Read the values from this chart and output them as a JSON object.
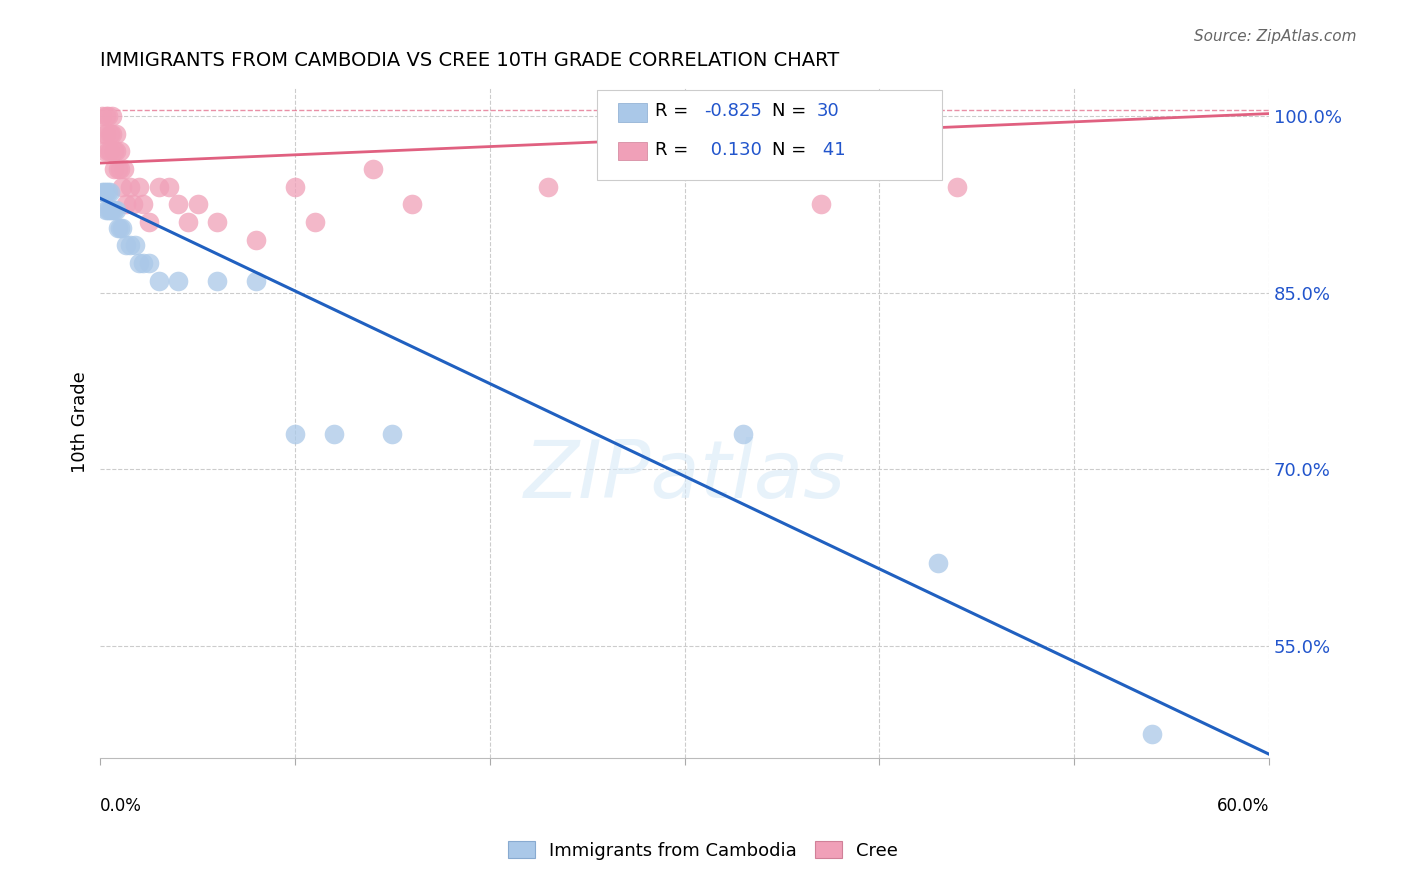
{
  "title": "IMMIGRANTS FROM CAMBODIA VS CREE 10TH GRADE CORRELATION CHART",
  "source": "Source: ZipAtlas.com",
  "ylabel": "10th Grade",
  "xlim": [
    0.0,
    0.6
  ],
  "ylim": [
    0.455,
    1.025
  ],
  "yticks": [
    1.0,
    0.85,
    0.7,
    0.55
  ],
  "ytick_labels": [
    "100.0%",
    "85.0%",
    "70.0%",
    "55.0%"
  ],
  "r_cambodia": -0.825,
  "n_cambodia": 30,
  "r_cree": 0.13,
  "n_cree": 41,
  "color_cambodia": "#aac8e8",
  "color_cree": "#f0a0b8",
  "line_color_cambodia": "#2060c0",
  "line_color_cree": "#e06080",
  "background_color": "#ffffff",
  "grid_color": "#cccccc",
  "cambodia_x": [
    0.001,
    0.002,
    0.003,
    0.003,
    0.004,
    0.004,
    0.005,
    0.005,
    0.006,
    0.007,
    0.008,
    0.009,
    0.01,
    0.011,
    0.013,
    0.015,
    0.018,
    0.02,
    0.022,
    0.025,
    0.03,
    0.04,
    0.06,
    0.08,
    0.1,
    0.12,
    0.15,
    0.33,
    0.43,
    0.54
  ],
  "cambodia_y": [
    0.935,
    0.935,
    0.935,
    0.92,
    0.935,
    0.92,
    0.935,
    0.92,
    0.92,
    0.92,
    0.92,
    0.905,
    0.905,
    0.905,
    0.89,
    0.89,
    0.89,
    0.875,
    0.875,
    0.875,
    0.86,
    0.86,
    0.86,
    0.86,
    0.73,
    0.73,
    0.73,
    0.73,
    0.62,
    0.475
  ],
  "cree_x": [
    0.001,
    0.002,
    0.002,
    0.003,
    0.003,
    0.004,
    0.004,
    0.005,
    0.005,
    0.006,
    0.006,
    0.007,
    0.007,
    0.008,
    0.008,
    0.009,
    0.01,
    0.01,
    0.011,
    0.012,
    0.013,
    0.015,
    0.017,
    0.02,
    0.022,
    0.025,
    0.03,
    0.035,
    0.04,
    0.045,
    0.05,
    0.06,
    0.08,
    0.1,
    0.11,
    0.14,
    0.16,
    0.23,
    0.31,
    0.37,
    0.44
  ],
  "cree_y": [
    1.0,
    0.985,
    0.97,
    1.0,
    0.985,
    1.0,
    0.97,
    0.985,
    0.97,
    1.0,
    0.985,
    0.97,
    0.955,
    0.985,
    0.97,
    0.955,
    0.97,
    0.955,
    0.94,
    0.955,
    0.925,
    0.94,
    0.925,
    0.94,
    0.925,
    0.91,
    0.94,
    0.94,
    0.925,
    0.91,
    0.925,
    0.91,
    0.895,
    0.94,
    0.91,
    0.955,
    0.925,
    0.94,
    0.955,
    0.925,
    0.94
  ],
  "camb_line_x0": 0.0,
  "camb_line_x1": 0.6,
  "camb_line_y0": 0.93,
  "camb_line_y1": 0.458,
  "cree_line_x0": 0.0,
  "cree_line_x1": 0.6,
  "cree_line_y0": 0.96,
  "cree_line_y1": 1.002
}
